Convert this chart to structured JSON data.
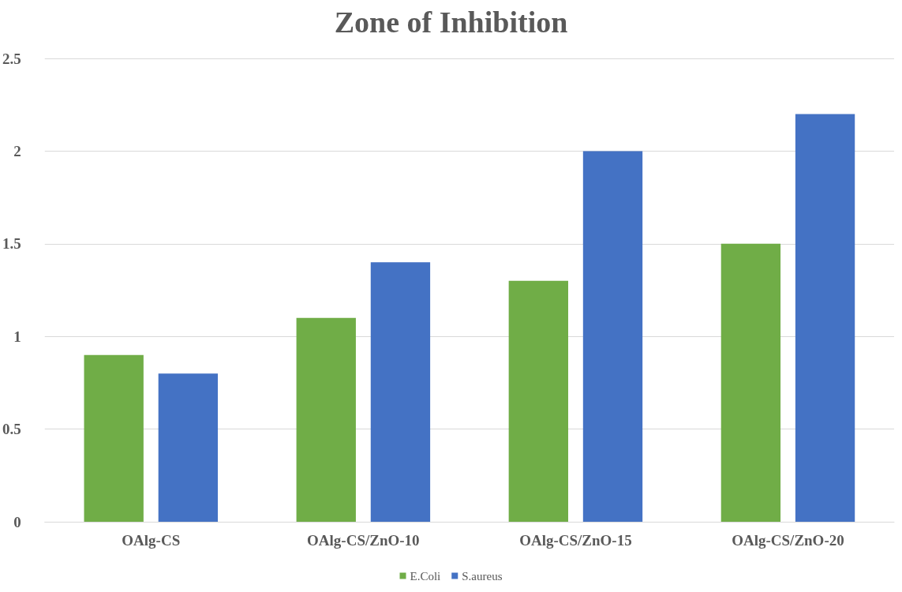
{
  "chart_data": {
    "type": "bar",
    "title": "Zone of Inhibition",
    "categories": [
      "OAlg-CS",
      "OAlg-CS/ZnO-10",
      "OAlg-CS/ZnO-15",
      "OAlg-CS/ZnO-20"
    ],
    "series": [
      {
        "name": "E.Coli",
        "color": "#70ad47",
        "values": [
          0.9,
          1.1,
          1.3,
          1.5
        ]
      },
      {
        "name": "S.aureus",
        "color": "#4472c4",
        "values": [
          0.8,
          1.4,
          2.0,
          2.2
        ]
      }
    ],
    "ylim": [
      0,
      2.5
    ],
    "yticks": [
      0,
      0.5,
      1,
      1.5,
      2,
      2.5
    ],
    "grid": "y",
    "legend": "bottom"
  }
}
